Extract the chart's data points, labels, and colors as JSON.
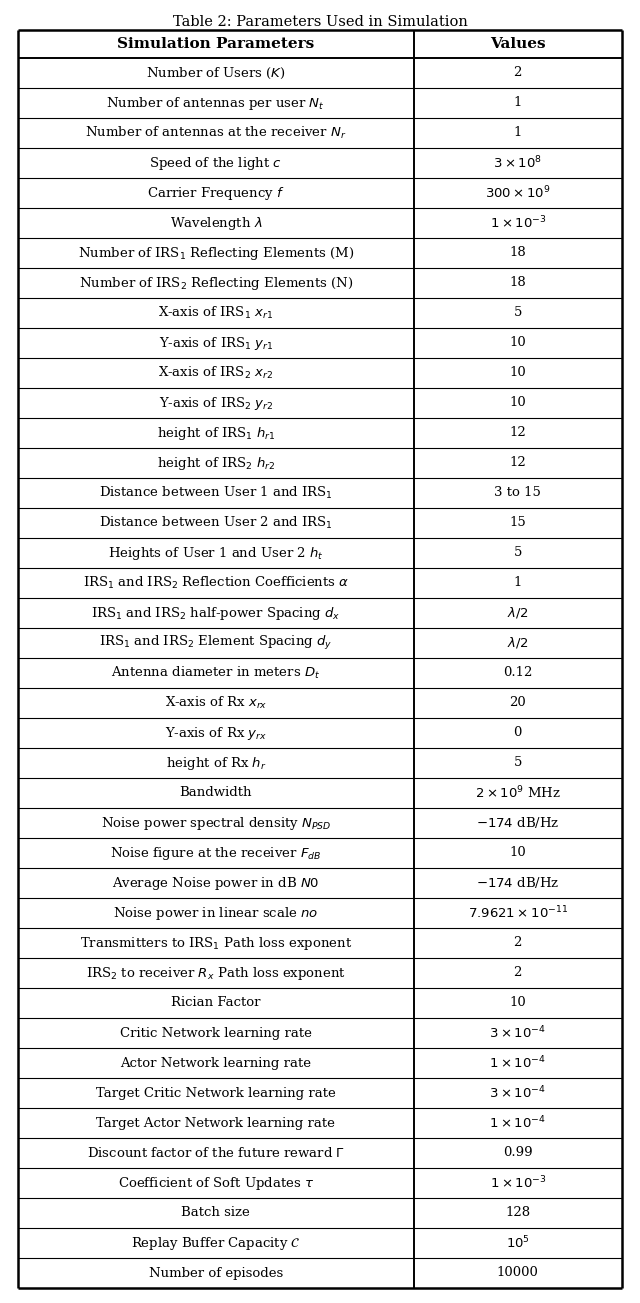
{
  "title": "Table 2: Parameters Used in Simulation",
  "col_headers": [
    "Simulation Parameters",
    "Values"
  ],
  "rows": [
    [
      "Number of Users ($K$)",
      "2"
    ],
    [
      "Number of antennas per user $N_t$",
      "1"
    ],
    [
      "Number of antennas at the receiver $N_r$",
      "1"
    ],
    [
      "Speed of the light $c$",
      "$3 \\times 10^8$"
    ],
    [
      "Carrier Frequency $f$",
      "$300 \\times 10^9$"
    ],
    [
      "Wavelength $\\lambda$",
      "$1 \\times 10^{-3}$"
    ],
    [
      "Number of IRS$_1$ Reflecting Elements (M)",
      "18"
    ],
    [
      "Number of IRS$_2$ Reflecting Elements (N)",
      "18"
    ],
    [
      "X-axis of IRS$_1$ $x_{r1}$",
      "5"
    ],
    [
      "Y-axis of IRS$_1$ $y_{r1}$",
      "10"
    ],
    [
      "X-axis of IRS$_2$ $x_{r2}$",
      "10"
    ],
    [
      "Y-axis of IRS$_2$ $y_{r2}$",
      "10"
    ],
    [
      "height of IRS$_1$ $h_{r1}$",
      "12"
    ],
    [
      "height of IRS$_2$ $h_{r2}$",
      "12"
    ],
    [
      "Distance between User 1 and IRS$_1$",
      "3 to 15"
    ],
    [
      "Distance between User 2 and IRS$_1$",
      "15"
    ],
    [
      "Heights of User 1 and User 2 $h_t$",
      "5"
    ],
    [
      "IRS$_1$ and IRS$_2$ Reflection Coefficients $\\alpha$",
      "1"
    ],
    [
      "IRS$_1$ and IRS$_2$ half-power Spacing $d_x$",
      "$\\lambda/2$"
    ],
    [
      "IRS$_1$ and IRS$_2$ Element Spacing $d_y$",
      "$\\lambda/2$"
    ],
    [
      "Antenna diameter in meters $D_t$",
      "0.12"
    ],
    [
      "X-axis of Rx $x_{rx}$",
      "20"
    ],
    [
      "Y-axis of Rx $y_{rx}$",
      "0"
    ],
    [
      "height of Rx $h_r$",
      "5"
    ],
    [
      "Bandwidth",
      "$2 \\times 10^9$ MHz"
    ],
    [
      "Noise power spectral density $N_{PSD}$",
      "$-174$ dB/Hz"
    ],
    [
      "Noise figure at the receiver $F_{dB}$",
      "10"
    ],
    [
      "Average Noise power in dB $N0$",
      "$-174$ dB/Hz"
    ],
    [
      "Noise power in linear scale $no$",
      "$7.9621 \\times 10^{-11}$"
    ],
    [
      "Transmitters to IRS$_1$ Path loss exponent",
      "2"
    ],
    [
      "IRS$_2$ to receiver $R_x$ Path loss exponent",
      "2"
    ],
    [
      "Rician Factor",
      "10"
    ],
    [
      "Critic Network learning rate",
      "$3 \\times 10^{-4}$"
    ],
    [
      "Actor Network learning rate",
      "$1 \\times 10^{-4}$"
    ],
    [
      "Target Critic Network learning rate",
      "$3 \\times 10^{-4}$"
    ],
    [
      "Target Actor Network learning rate",
      "$1 \\times 10^{-4}$"
    ],
    [
      "Discount factor of the future reward $\\Gamma$",
      "0.99"
    ],
    [
      "Coefficient of Soft Updates $\\tau$",
      "$1 \\times 10^{-3}$"
    ],
    [
      "Batch size",
      "128"
    ],
    [
      "Replay Buffer Capacity $\\mathcal{C}$",
      "$10^5$"
    ],
    [
      "Number of episodes",
      "10000"
    ]
  ],
  "background_color": "#ffffff",
  "text_color": "#000000",
  "title_fontsize": 10.5,
  "header_fontsize": 11,
  "cell_fontsize": 9.5,
  "col_split": 0.655
}
